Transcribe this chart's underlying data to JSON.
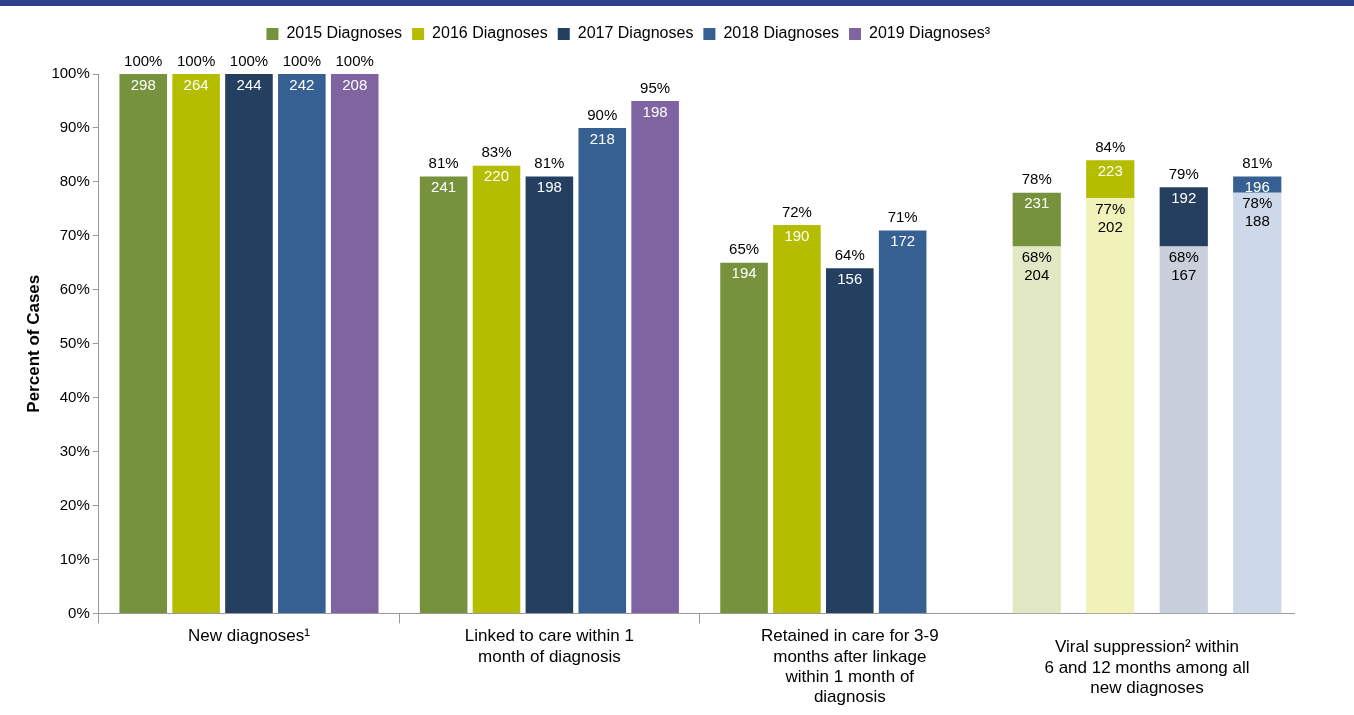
{
  "chart_data": [
    {
      "type": "bar",
      "ylabel": "Percent of Cases",
      "legend": "top right",
      "grid": false,
      "categories": [
        "New diagnoses¹",
        "Linked to care within 1 month of diagnosis",
        "Retained in care for 3-9 months after linkage within 1 month of diagnosis"
      ],
      "ylim": [
        0,
        100
      ],
      "yticks": [
        {
          "value": 0,
          "label": "0%"
        },
        {
          "value": 10,
          "label": "10%"
        },
        {
          "value": 20,
          "label": "20%"
        },
        {
          "value": 30,
          "label": "30%"
        },
        {
          "value": 40,
          "label": "40%"
        },
        {
          "value": 50,
          "label": "50%"
        },
        {
          "value": 60,
          "label": "60%"
        },
        {
          "value": 70,
          "label": "70%"
        },
        {
          "value": 80,
          "label": "80%"
        },
        {
          "value": 90,
          "label": "90%"
        },
        {
          "value": 100,
          "label": "100%"
        }
      ],
      "series": [
        {
          "name": "2015 Diagnoses",
          "color": "#76923c",
          "values": [
            100,
            81,
            65
          ],
          "value_labels": [
            "100%\n298",
            "81%\n241",
            "65%\n194"
          ]
        },
        {
          "name": "2016 Diagnoses",
          "color": "#b5bd00",
          "values": [
            100,
            83,
            72
          ],
          "value_labels": [
            "100%\n264",
            "83%\n220",
            "72%\n190"
          ]
        },
        {
          "name": "2017 Diagnoses",
          "color": "#243f60",
          "values": [
            100,
            81,
            64
          ],
          "value_labels": [
            "100%\n244",
            "81%\n198",
            "64%\n156"
          ]
        },
        {
          "name": "2018 Diagnoses",
          "color": "#366092",
          "values": [
            100,
            90,
            71
          ],
          "value_labels": [
            "100%\n242",
            "90%\n218",
            "71%\n172"
          ]
        },
        {
          "name": "2019 Diagnoses³",
          "color": "#8064a2",
          "values": [
            100,
            95,
            null
          ],
          "value_labels": [
            "100%\n208",
            "95%\n198",
            null
          ]
        }
      ]
    },
    {
      "type": "bar",
      "stacked": true,
      "xlabel": "Viral suppression² within 6 and 12 months among all new diagnoses",
      "grid": false,
      "tick_labels": false,
      "categories": [
        null,
        null,
        null,
        null
      ],
      "ylim": [
        0,
        100
      ],
      "series": [
        {
          "colors": [
            "#e2e8c4",
            "#f1f2b8",
            "#c9d0dc",
            "#cdd8e8"
          ],
          "values": [
            68,
            77,
            68,
            78
          ],
          "value_labels": [
            "68%\n204",
            "77%\n202",
            "68%\n167",
            "78%\n188"
          ]
        },
        {
          "colors": [
            "#76923c",
            "#b5bd00",
            "#243f60",
            "#366092"
          ],
          "values": [
            10,
            7,
            11,
            3
          ]
        }
      ],
      "totals": [
        "78%\n231",
        "84%\n223",
        "79%\n192",
        "81%\n196"
      ]
    }
  ]
}
